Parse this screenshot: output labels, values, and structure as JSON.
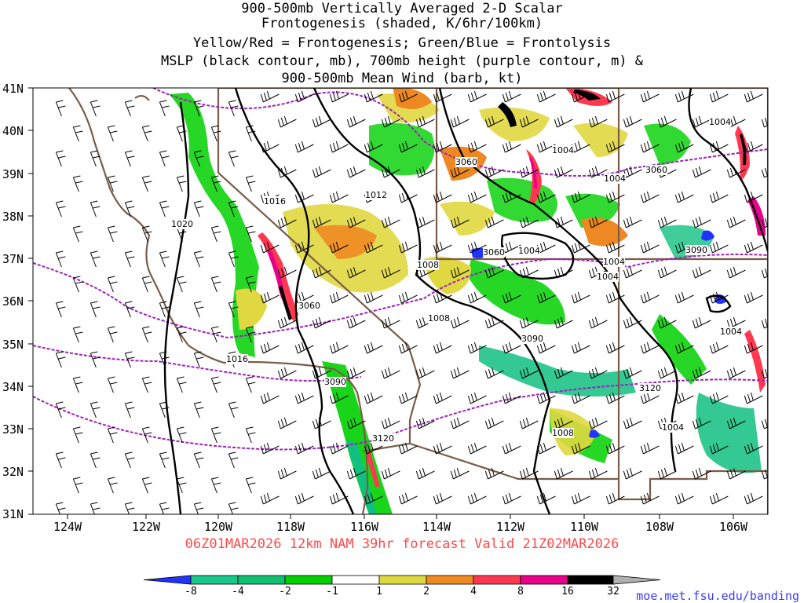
{
  "title_lines": [
    "900-500mb Vertically Averaged 2-D Scalar",
    "Frontogenesis (shaded, K/6hr/100km)",
    "Yellow/Red = Frontogenesis;  Green/Blue = Frontolysis",
    "MSLP (black contour, mb), 700mb height (purple contour, m) &",
    "900-500mb Mean Wind (barb, kt)"
  ],
  "valid_text": "06Z01MAR2026 12km NAM 39hr forecast Valid 21Z02MAR2026",
  "credit": "moe.met.fsu.edu/banding",
  "colors": {
    "pressure": "#000000",
    "height": "#a020c0",
    "borders": "#7a5c48",
    "frontolysis_strong": "#2233ff",
    "frontolysis_mod": "#10c080",
    "frontolysis_weak": "#00d000",
    "frontogenesis_weak": "#e0d840",
    "frontogenesis_mod": "#ee8822",
    "frontogenesis_strong": "#ff3850",
    "frontogenesis_vstrong": "#e8008a"
  },
  "map": {
    "lon_ticks": [
      "124W",
      "122W",
      "120W",
      "118W",
      "116W",
      "114W",
      "112W",
      "110W",
      "108W",
      "106W"
    ],
    "lat_ticks": [
      "41N",
      "40N",
      "39N",
      "38N",
      "37N",
      "36N",
      "35N",
      "34N",
      "33N",
      "32N",
      "31N"
    ]
  },
  "contour_labels": {
    "pressure": [
      "1020",
      "1016",
      "1012",
      "1008",
      "1008",
      "1004",
      "1004",
      "1004",
      "1004",
      "1004",
      "1004",
      "1004",
      "1016",
      "1008"
    ],
    "height": [
      "3060",
      "3060",
      "3060",
      "3090",
      "3090",
      "3090",
      "3120",
      "3120",
      "3060"
    ]
  },
  "colorbar": {
    "labels": [
      "-8",
      "-4",
      "-2",
      "-1",
      "1",
      "2",
      "4",
      "8",
      "16",
      "32"
    ],
    "colors": [
      "#2233ff",
      "#18c888",
      "#10c070",
      "#00d000",
      "#ffffff",
      "#e0d840",
      "#ee8822",
      "#ff3850",
      "#e8008a",
      "#000000",
      "#b0b0b0"
    ]
  }
}
